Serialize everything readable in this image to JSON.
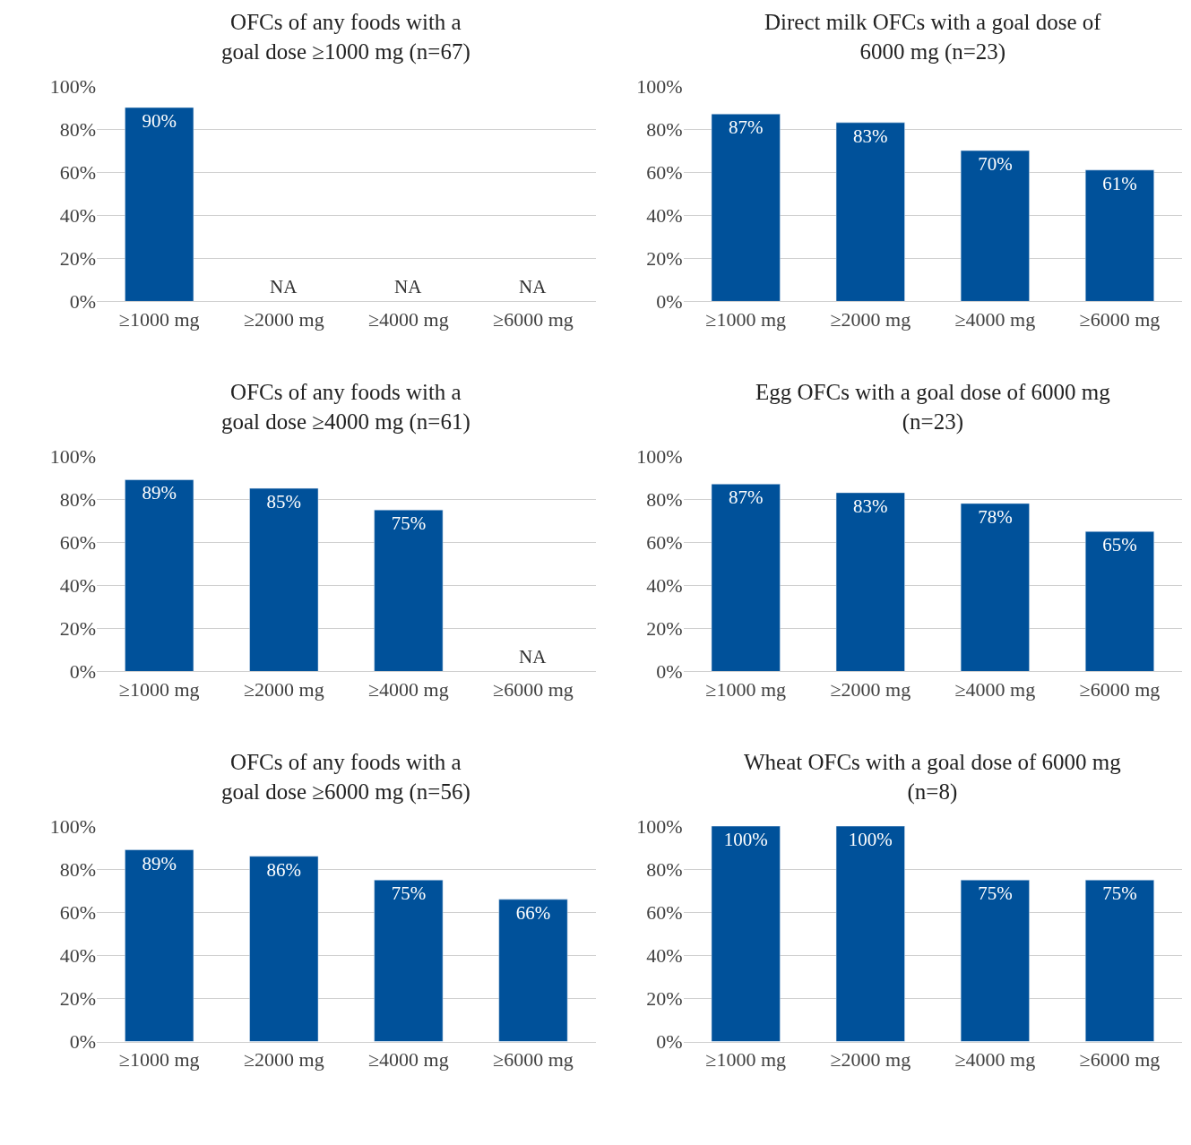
{
  "chart_data": [
    {
      "type": "bar",
      "title": "OFCs of any foods with a\ngoal dose ≥1000 mg (n=67)",
      "categories": [
        "≥1000 mg",
        "≥2000 mg",
        "≥4000 mg",
        "≥6000 mg"
      ],
      "values": [
        90,
        null,
        null,
        null
      ],
      "value_labels": [
        "90%",
        "NA",
        "NA",
        "NA"
      ],
      "color": "#00519a",
      "ylim": [
        0,
        100
      ],
      "yticks": [
        {
          "value": 0,
          "label": "0%"
        },
        {
          "value": 20,
          "label": "20%"
        },
        {
          "value": 40,
          "label": "40%"
        },
        {
          "value": 60,
          "label": "60%"
        },
        {
          "value": 80,
          "label": "80%"
        },
        {
          "value": 100,
          "label": "100%"
        }
      ],
      "grid": "y"
    },
    {
      "type": "bar",
      "title": "Direct milk OFCs with a goal dose of\n6000 mg (n=23)",
      "categories": [
        "≥1000 mg",
        "≥2000 mg",
        "≥4000 mg",
        "≥6000 mg"
      ],
      "values": [
        87,
        83,
        70,
        61
      ],
      "value_labels": [
        "87%",
        "83%",
        "70%",
        "61%"
      ],
      "color": "#00519a",
      "ylim": [
        0,
        100
      ],
      "yticks": [
        {
          "value": 0,
          "label": "0%"
        },
        {
          "value": 20,
          "label": "20%"
        },
        {
          "value": 40,
          "label": "40%"
        },
        {
          "value": 60,
          "label": "60%"
        },
        {
          "value": 80,
          "label": "80%"
        },
        {
          "value": 100,
          "label": "100%"
        }
      ],
      "grid": "y"
    },
    {
      "type": "bar",
      "title": "OFCs of any foods with a\ngoal dose ≥4000 mg (n=61)",
      "categories": [
        "≥1000 mg",
        "≥2000 mg",
        "≥4000 mg",
        "≥6000 mg"
      ],
      "values": [
        89,
        85,
        75,
        null
      ],
      "value_labels": [
        "89%",
        "85%",
        "75%",
        "NA"
      ],
      "color": "#00519a",
      "ylim": [
        0,
        100
      ],
      "yticks": [
        {
          "value": 0,
          "label": "0%"
        },
        {
          "value": 20,
          "label": "20%"
        },
        {
          "value": 40,
          "label": "40%"
        },
        {
          "value": 60,
          "label": "60%"
        },
        {
          "value": 80,
          "label": "80%"
        },
        {
          "value": 100,
          "label": "100%"
        }
      ],
      "grid": "y"
    },
    {
      "type": "bar",
      "title": "Egg OFCs with a goal dose of 6000 mg\n(n=23)",
      "categories": [
        "≥1000 mg",
        "≥2000 mg",
        "≥4000 mg",
        "≥6000 mg"
      ],
      "values": [
        87,
        83,
        78,
        65
      ],
      "value_labels": [
        "87%",
        "83%",
        "78%",
        "65%"
      ],
      "color": "#00519a",
      "ylim": [
        0,
        100
      ],
      "yticks": [
        {
          "value": 0,
          "label": "0%"
        },
        {
          "value": 20,
          "label": "20%"
        },
        {
          "value": 40,
          "label": "40%"
        },
        {
          "value": 60,
          "label": "60%"
        },
        {
          "value": 80,
          "label": "80%"
        },
        {
          "value": 100,
          "label": "100%"
        }
      ],
      "grid": "y"
    },
    {
      "type": "bar",
      "title": "OFCs of any foods with a\ngoal dose ≥6000 mg (n=56)",
      "categories": [
        "≥1000 mg",
        "≥2000 mg",
        "≥4000 mg",
        "≥6000 mg"
      ],
      "values": [
        89,
        86,
        75,
        66
      ],
      "value_labels": [
        "89%",
        "86%",
        "75%",
        "66%"
      ],
      "color": "#00519a",
      "ylim": [
        0,
        100
      ],
      "yticks": [
        {
          "value": 0,
          "label": "0%"
        },
        {
          "value": 20,
          "label": "20%"
        },
        {
          "value": 40,
          "label": "40%"
        },
        {
          "value": 60,
          "label": "60%"
        },
        {
          "value": 80,
          "label": "80%"
        },
        {
          "value": 100,
          "label": "100%"
        }
      ],
      "grid": "y"
    },
    {
      "type": "bar",
      "title": "Wheat OFCs with a goal dose of 6000 mg\n(n=8)",
      "categories": [
        "≥1000 mg",
        "≥2000 mg",
        "≥4000 mg",
        "≥6000 mg"
      ],
      "values": [
        100,
        100,
        75,
        75
      ],
      "value_labels": [
        "100%",
        "100%",
        "75%",
        "75%"
      ],
      "color": "#00519a",
      "ylim": [
        0,
        100
      ],
      "yticks": [
        {
          "value": 0,
          "label": "0%"
        },
        {
          "value": 20,
          "label": "20%"
        },
        {
          "value": 40,
          "label": "40%"
        },
        {
          "value": 60,
          "label": "60%"
        },
        {
          "value": 80,
          "label": "80%"
        },
        {
          "value": 100,
          "label": "100%"
        }
      ],
      "grid": "y"
    }
  ]
}
